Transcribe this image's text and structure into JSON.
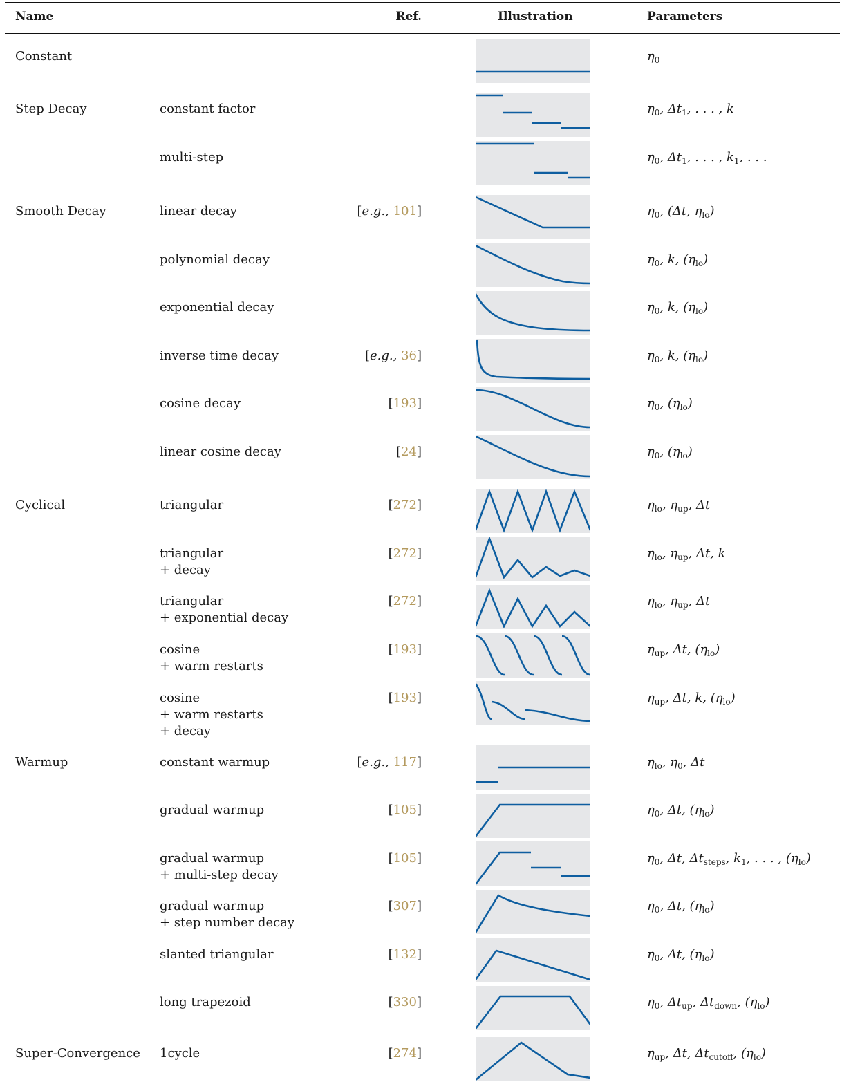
{
  "headers": {
    "name": "Name",
    "ref": "Ref.",
    "illustration": "Illustration",
    "parameters": "Parameters"
  },
  "colors": {
    "curve": "#0e5ea0",
    "panel": "#e6e7e9",
    "citation": "#b49a5e"
  },
  "rows": [
    {
      "name": "Constant",
      "variant": [],
      "ref": null,
      "curve": "constant",
      "params": "η0"
    },
    {
      "name": "Step Decay",
      "variant": [
        "constant factor"
      ],
      "ref": null,
      "curve": "step-constant-factor",
      "params": "η0, Δt1, . . . , k"
    },
    {
      "name": "",
      "variant": [
        "multi-step"
      ],
      "ref": null,
      "curve": "multi-step",
      "params": "η0, Δt1, . . . , k1, . . ."
    },
    {
      "name": "Smooth Decay",
      "variant": [
        "linear decay"
      ],
      "ref": {
        "prefix": "e.g., ",
        "number": "101"
      },
      "curve": "linear-decay",
      "params": "η0, (Δt, ηlo)"
    },
    {
      "name": "",
      "variant": [
        "polynomial decay"
      ],
      "ref": null,
      "curve": "polynomial-decay",
      "params": "η0, k, (ηlo)"
    },
    {
      "name": "",
      "variant": [
        "exponential decay"
      ],
      "ref": null,
      "curve": "exponential-decay",
      "params": "η0, k, (ηlo)"
    },
    {
      "name": "",
      "variant": [
        "inverse time decay"
      ],
      "ref": {
        "prefix": "e.g., ",
        "number": "36"
      },
      "curve": "inverse-time-decay",
      "params": "η0, k, (ηlo)"
    },
    {
      "name": "",
      "variant": [
        "cosine decay"
      ],
      "ref": {
        "prefix": "",
        "number": "193"
      },
      "curve": "cosine-decay",
      "params": "η0, (ηlo)"
    },
    {
      "name": "",
      "variant": [
        "linear cosine decay"
      ],
      "ref": {
        "prefix": "",
        "number": "24"
      },
      "curve": "linear-cosine-decay",
      "params": "η0, (ηlo)"
    },
    {
      "name": "Cyclical",
      "variant": [
        "triangular"
      ],
      "ref": {
        "prefix": "",
        "number": "272"
      },
      "curve": "triangular",
      "params": "ηlo, ηup, Δt"
    },
    {
      "name": "",
      "variant": [
        "triangular",
        "+ decay"
      ],
      "ref": {
        "prefix": "",
        "number": "272"
      },
      "curve": "triangular-decay",
      "params": "ηlo, ηup, Δt, k"
    },
    {
      "name": "",
      "variant": [
        "triangular",
        "+ exponential decay"
      ],
      "ref": {
        "prefix": "",
        "number": "272"
      },
      "curve": "triangular-exp-decay",
      "params": "ηlo, ηup, Δt"
    },
    {
      "name": "",
      "variant": [
        "cosine",
        "+ warm restarts"
      ],
      "ref": {
        "prefix": "",
        "number": "193"
      },
      "curve": "cosine-warm-restarts",
      "params": "ηup, Δt, (ηlo)"
    },
    {
      "name": "",
      "variant": [
        "cosine",
        "+ warm restarts",
        "+ decay"
      ],
      "ref": {
        "prefix": "",
        "number": "193"
      },
      "curve": "cosine-warm-restarts-decay",
      "params": "ηup, Δt, k, (ηlo)"
    },
    {
      "name": "Warmup",
      "variant": [
        "constant warmup"
      ],
      "ref": {
        "prefix": "e.g., ",
        "number": "117"
      },
      "curve": "constant-warmup",
      "params": "ηlo, η0, Δt"
    },
    {
      "name": "",
      "variant": [
        "gradual warmup"
      ],
      "ref": {
        "prefix": "",
        "number": "105"
      },
      "curve": "gradual-warmup",
      "params": "η0, Δt, (ηlo)"
    },
    {
      "name": "",
      "variant": [
        "gradual warmup",
        "+ multi-step decay"
      ],
      "ref": {
        "prefix": "",
        "number": "105"
      },
      "curve": "gradual-warmup-multistep",
      "params": "η0, Δt, Δtsteps, k1, . . . , (ηlo)"
    },
    {
      "name": "",
      "variant": [
        "gradual warmup",
        "+ step number decay"
      ],
      "ref": {
        "prefix": "",
        "number": "307"
      },
      "curve": "gradual-warmup-stepnum",
      "params": "η0, Δt, (ηlo)"
    },
    {
      "name": "",
      "variant": [
        "slanted triangular"
      ],
      "ref": {
        "prefix": "",
        "number": "132"
      },
      "curve": "slanted-triangular",
      "params": "η0, Δt, (ηlo)"
    },
    {
      "name": "",
      "variant": [
        "long trapezoid"
      ],
      "ref": {
        "prefix": "",
        "number": "330"
      },
      "curve": "long-trapezoid",
      "params": "η0, Δtup, Δtdown, (ηlo)"
    },
    {
      "name": "Super-Convergence",
      "variant": [
        "1cycle"
      ],
      "ref": {
        "prefix": "",
        "number": "274"
      },
      "curve": "1cycle",
      "params": "ηup, Δt, Δtcutoff, (ηlo)"
    }
  ]
}
